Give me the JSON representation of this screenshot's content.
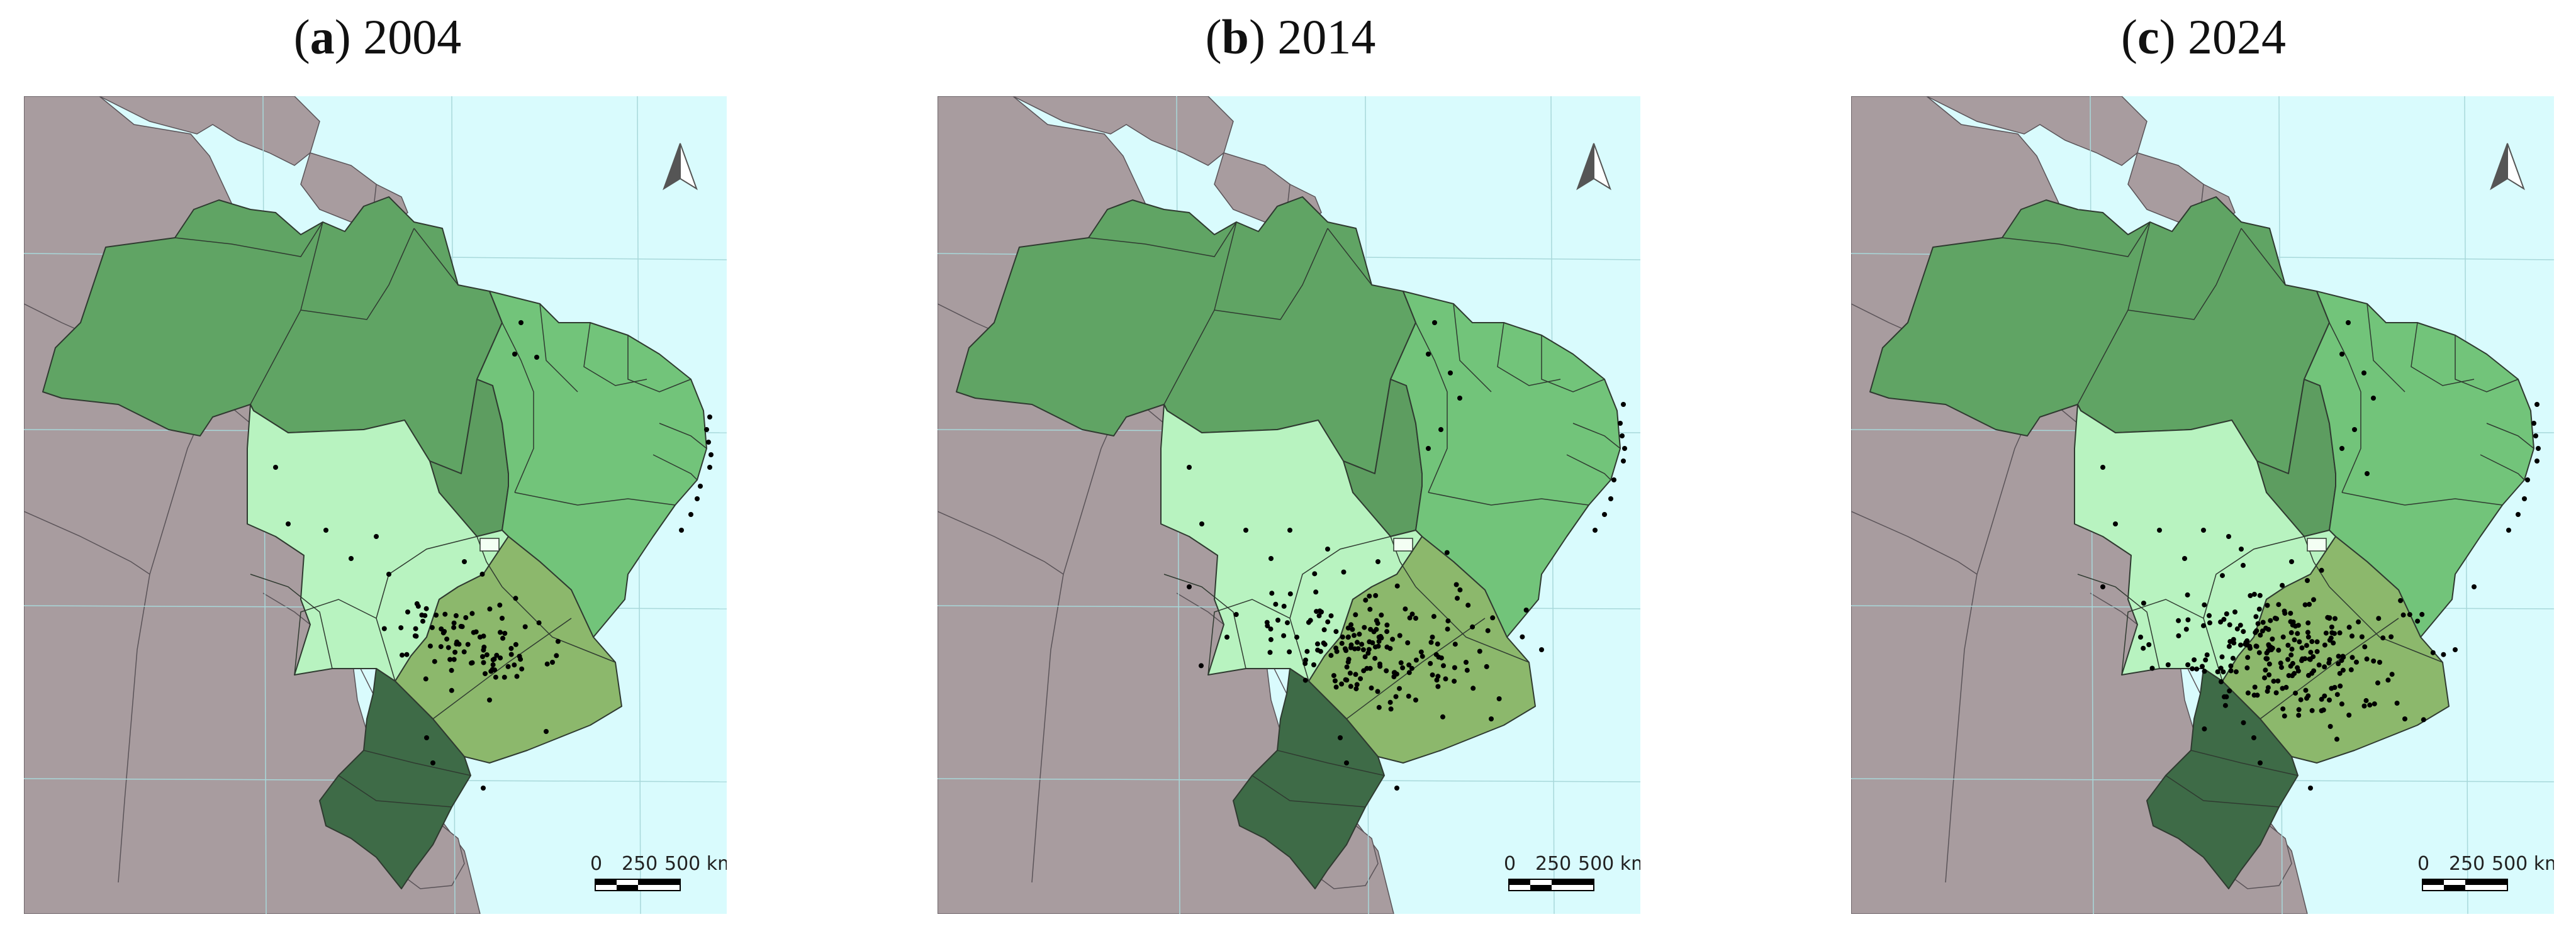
{
  "panels": [
    {
      "letter": "a",
      "year": "2004"
    },
    {
      "letter": "b",
      "year": "2014"
    },
    {
      "letter": "c",
      "year": "2024"
    }
  ],
  "scale_bar": {
    "labels": [
      "0",
      "250",
      "500 km"
    ]
  },
  "colors": {
    "ocean": "#d9fbfd",
    "foreign_land": "#a89c9f",
    "region_north": "#60a464",
    "region_northeast": "#72c47a",
    "region_tocantins": "#5d9d60",
    "region_centerwest": "#b8f3c0",
    "region_southeast": "#8cb86c",
    "region_south": "#3e6b47",
    "points": "#000000"
  },
  "icons": [
    "north-arrow-icon"
  ]
}
